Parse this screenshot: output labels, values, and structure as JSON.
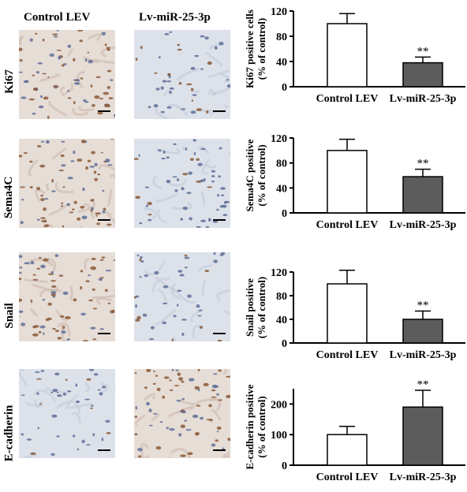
{
  "headers": {
    "control": "Control LEV",
    "treated": "Lv-miR-25-3p"
  },
  "rows": [
    {
      "label": "Ki67"
    },
    {
      "label": "Sema4C"
    },
    {
      "label": "Snail"
    },
    {
      "label": "E-cadherin"
    }
  ],
  "chart_data": [
    {
      "type": "bar",
      "categories": [
        "Control LEV",
        "Lv-miR-25-3p"
      ],
      "values": [
        100,
        38
      ],
      "errors": [
        16,
        9
      ],
      "ylabel_line1": "Ki67 positive cells",
      "ylabel_line2": "(% of control)",
      "ylim": [
        0,
        120
      ],
      "yticks": [
        "0",
        "40",
        "80",
        "120"
      ],
      "significance": [
        "",
        "**"
      ],
      "colors": [
        "#ffffff",
        "#5c5c5c"
      ]
    },
    {
      "type": "bar",
      "categories": [
        "Control LEV",
        "Lv-miR-25-3p"
      ],
      "values": [
        100,
        58
      ],
      "errors": [
        18,
        12
      ],
      "ylabel_line1": "Sema4C positive",
      "ylabel_line2": "(% of control)",
      "ylim": [
        0,
        120
      ],
      "yticks": [
        "0",
        "40",
        "80",
        "120"
      ],
      "significance": [
        "",
        "**"
      ],
      "colors": [
        "#ffffff",
        "#5c5c5c"
      ]
    },
    {
      "type": "bar",
      "categories": [
        "Control LEV",
        "Lv-miR-25-3p"
      ],
      "values": [
        100,
        40
      ],
      "errors": [
        23,
        14
      ],
      "ylabel_line1": "Snail positive",
      "ylabel_line2": "(% of control)",
      "ylim": [
        0,
        120
      ],
      "yticks": [
        "0",
        "40",
        "80",
        "120"
      ],
      "significance": [
        "",
        "**"
      ],
      "colors": [
        "#ffffff",
        "#5c5c5c"
      ]
    },
    {
      "type": "bar",
      "categories": [
        "Control LEV",
        "Lv-miR-25-3p"
      ],
      "values": [
        100,
        190
      ],
      "errors": [
        27,
        55
      ],
      "ylabel_line1": "E-cadherin positive",
      "ylabel_line2": "(% of control)",
      "ylim": [
        0,
        250
      ],
      "yticks": [
        "0",
        "100",
        "200"
      ],
      "significance": [
        "",
        "**"
      ],
      "colors": [
        "#ffffff",
        "#5c5c5c"
      ]
    }
  ]
}
